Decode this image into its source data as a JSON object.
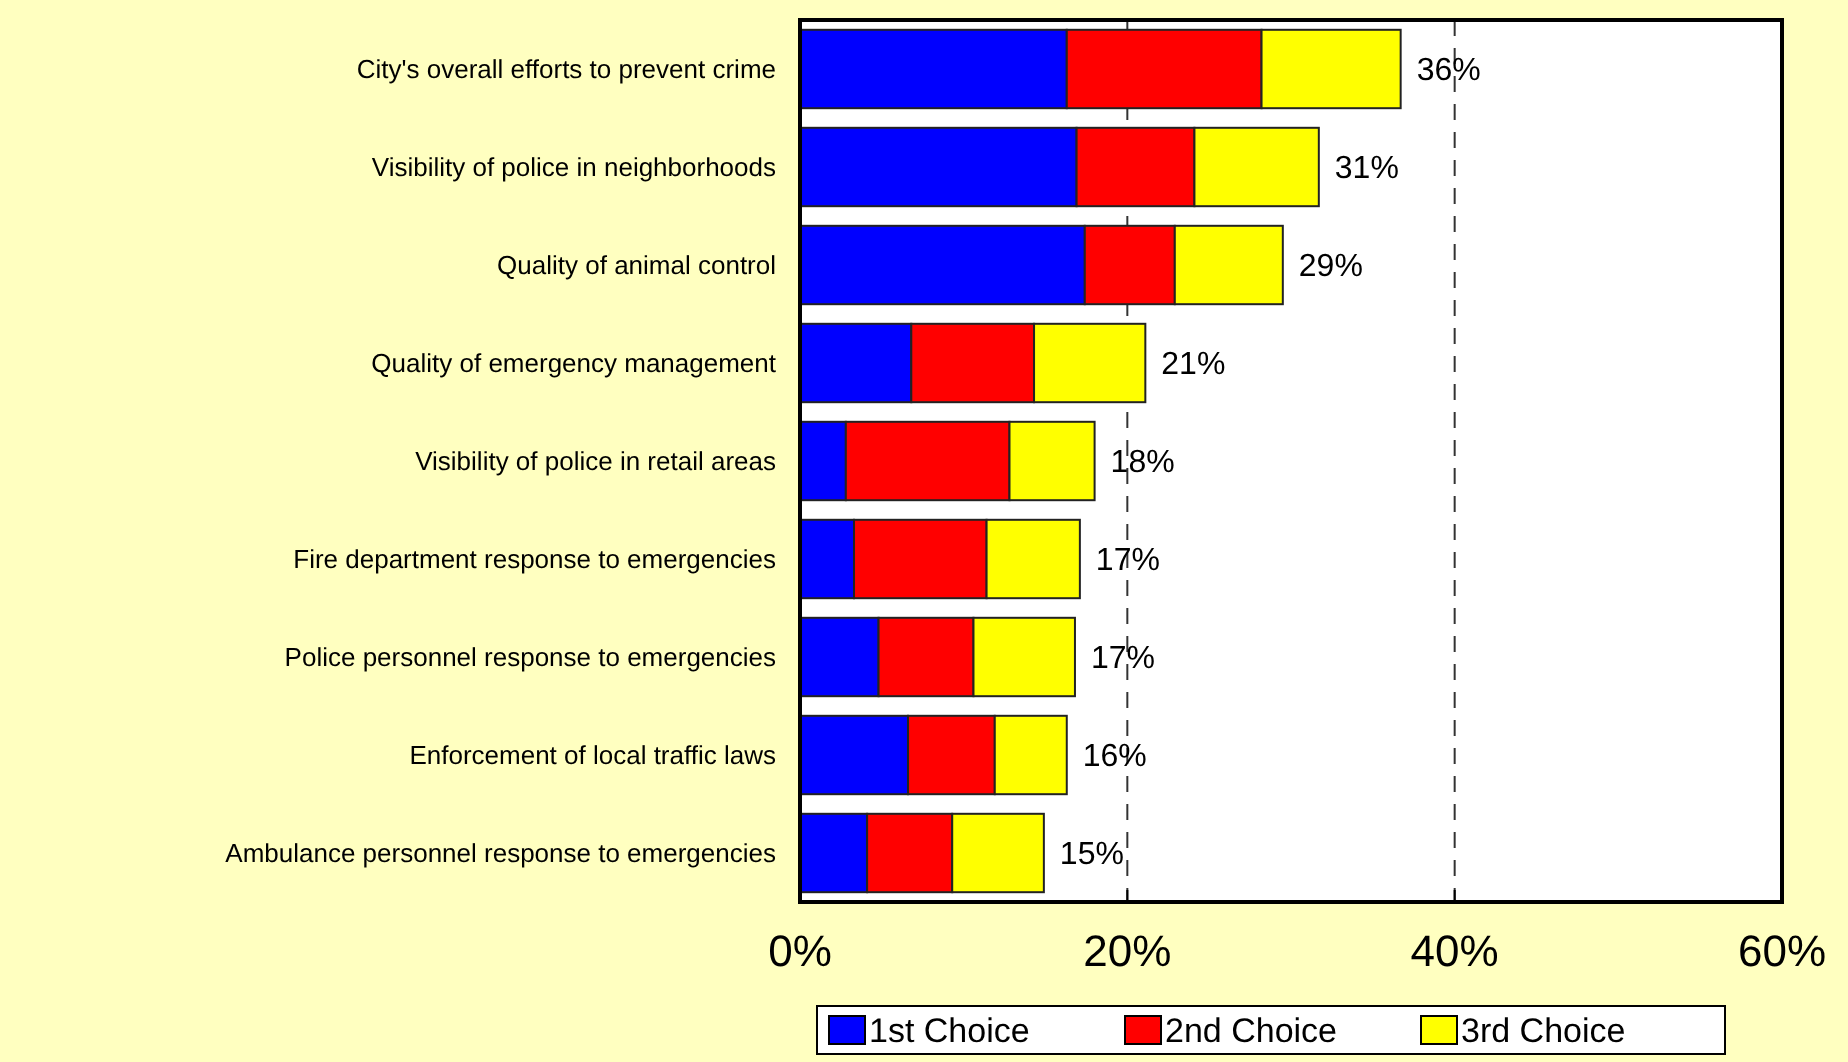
{
  "chart_data": {
    "type": "bar",
    "orientation": "horizontal",
    "stacked": true,
    "categories": [
      "City's overall efforts to prevent crime",
      "Visibility of police in neighborhoods",
      "Quality of animal control",
      "Quality of emergency management",
      "Visibility of police in retail areas",
      "Fire department response to emergencies",
      "Police personnel response to emergencies",
      "Enforcement of local traffic laws",
      "Ambulance personnel response to emergencies"
    ],
    "series": [
      {
        "name": "1st Choice",
        "color": "#0000ff",
        "values": [
          16.3,
          16.9,
          17.4,
          6.8,
          2.8,
          3.3,
          4.8,
          6.6,
          4.1
        ]
      },
      {
        "name": "2nd Choice",
        "color": "#ff0000",
        "values": [
          11.9,
          7.2,
          5.5,
          7.5,
          10.0,
          8.1,
          5.8,
          5.3,
          5.2
        ]
      },
      {
        "name": "3rd Choice",
        "color": "#ffff00",
        "values": [
          8.5,
          7.6,
          6.6,
          6.8,
          5.2,
          5.7,
          6.2,
          4.4,
          5.6
        ]
      }
    ],
    "totals": [
      "36%",
      "31%",
      "29%",
      "21%",
      "18%",
      "17%",
      "17%",
      "16%",
      "15%"
    ],
    "xlim": [
      0,
      60
    ],
    "xticks": [
      {
        "value": 0,
        "label": "0%"
      },
      {
        "value": 20,
        "label": "20%"
      },
      {
        "value": 40,
        "label": "40%"
      },
      {
        "value": 60,
        "label": "60%"
      }
    ],
    "grid": "x",
    "legend": "bottom"
  }
}
